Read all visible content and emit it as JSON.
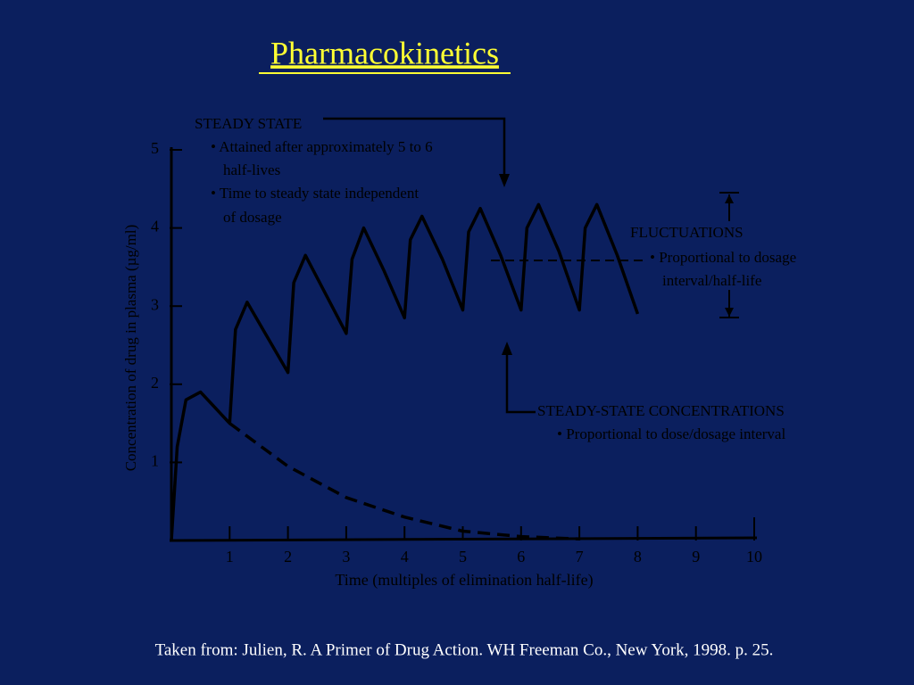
{
  "header": {
    "title": "Pharmacokinetics"
  },
  "chart_data": {
    "type": "line",
    "x_label": "Time (multiples of elimination half-life)",
    "y_label": "Concentration of drug in plasma (µg/ml)",
    "xlim": [
      0,
      10
    ],
    "ylim": [
      0,
      5
    ],
    "xticks": [
      1,
      2,
      3,
      4,
      5,
      6,
      7,
      8,
      9,
      10
    ],
    "yticks": [
      1,
      2,
      3,
      4,
      5
    ],
    "series": [
      {
        "color": "#000000",
        "dash": false,
        "x": [
          0,
          0.1,
          0.25,
          0.5,
          0.75,
          1.0,
          1.1,
          1.3,
          1.65,
          2.0,
          2.1,
          2.3,
          2.65,
          3.0,
          3.1,
          3.3,
          3.65,
          4.0,
          4.1,
          4.3,
          4.65,
          5.0,
          5.1,
          5.3,
          5.65,
          6.0,
          6.1,
          6.3,
          6.65,
          7.0,
          7.1,
          7.3,
          7.65,
          8.0
        ],
        "values": [
          0,
          1.2,
          1.8,
          1.9,
          1.7,
          1.5,
          2.7,
          3.05,
          2.6,
          2.15,
          3.3,
          3.65,
          3.15,
          2.65,
          3.6,
          4.0,
          3.45,
          2.85,
          3.85,
          4.15,
          3.6,
          2.95,
          3.95,
          4.25,
          3.65,
          2.95,
          4.0,
          4.3,
          3.7,
          2.95,
          4.0,
          4.3,
          3.65,
          2.9
        ]
      },
      {
        "color": "#000000",
        "dash": true,
        "x": [
          1,
          2,
          3,
          4,
          5,
          6,
          7
        ],
        "values": [
          1.5,
          0.95,
          0.55,
          0.3,
          0.12,
          0.05,
          0.02
        ]
      }
    ],
    "annotations": [
      "STEADY STATE",
      "• Attained after approximately 5 to 6",
      "half-lives",
      "• Time to steady state independent",
      "of dosage",
      "FLUCTUATIONS",
      "• Proportional to dosage",
      "interval/half-life",
      "STEADY-STATE CONCENTRATIONS",
      "• Proportional to dose/dosage interval"
    ]
  },
  "footer": {
    "citation": "Taken from: Julien, R. A Primer of Drug Action. WH Freeman Co., New York, 1998. p. 25."
  }
}
